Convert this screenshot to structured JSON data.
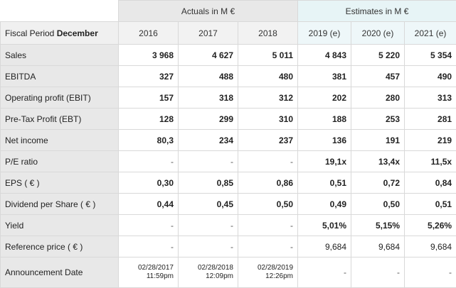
{
  "header": {
    "actuals_label": "Actuals in M €",
    "estimates_label": "Estimates in M €",
    "period_label": "Fiscal Period",
    "period_month": "December",
    "years": [
      "2016",
      "2017",
      "2018",
      "2019 (e)",
      "2020 (e)",
      "2021 (e)"
    ]
  },
  "rows": [
    {
      "label": "Sales",
      "values": [
        "3 968",
        "4 627",
        "5 011",
        "4 843",
        "5 220",
        "5 354"
      ]
    },
    {
      "label": "EBITDA",
      "values": [
        "327",
        "488",
        "480",
        "381",
        "457",
        "490"
      ]
    },
    {
      "label": "Operating profit (EBIT)",
      "values": [
        "157",
        "318",
        "312",
        "202",
        "280",
        "313"
      ]
    },
    {
      "label": "Pre-Tax Profit (EBT)",
      "values": [
        "128",
        "299",
        "310",
        "188",
        "253",
        "281"
      ]
    },
    {
      "label": "Net income",
      "values": [
        "80,3",
        "234",
        "237",
        "136",
        "191",
        "219"
      ]
    },
    {
      "label": "P/E ratio",
      "values": [
        "-",
        "-",
        "-",
        "19,1x",
        "13,4x",
        "11,5x"
      ]
    },
    {
      "label": "EPS ( € )",
      "values": [
        "0,30",
        "0,85",
        "0,86",
        "0,51",
        "0,72",
        "0,84"
      ]
    },
    {
      "label": "Dividend per Share ( € )",
      "values": [
        "0,44",
        "0,45",
        "0,50",
        "0,49",
        "0,50",
        "0,51"
      ]
    },
    {
      "label": "Yield",
      "values": [
        "-",
        "-",
        "-",
        "5,01%",
        "5,15%",
        "5,26%"
      ]
    },
    {
      "label": "Reference price ( € )",
      "values": [
        "-",
        "-",
        "-",
        "9,684",
        "9,684",
        "9,684"
      ]
    }
  ],
  "announcement": {
    "label": "Announcement Date",
    "dates": [
      {
        "date": "02/28/2017",
        "time": "11:59pm"
      },
      {
        "date": "02/28/2018",
        "time": "12:09pm"
      },
      {
        "date": "02/28/2019",
        "time": "12:26pm"
      }
    ],
    "estimates": [
      "-",
      "-",
      "-"
    ]
  }
}
